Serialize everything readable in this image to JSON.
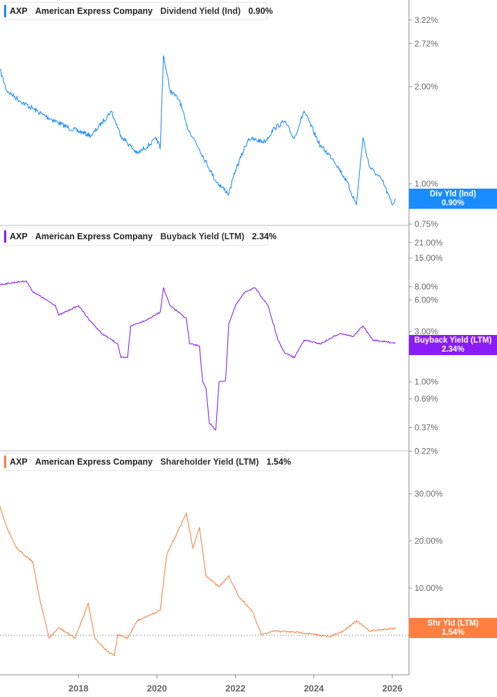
{
  "chart_data": [
    {
      "type": "line",
      "scale": "log",
      "ticker": "AXP",
      "company": "American Express Company",
      "metric": "Dividend Yield (Ind)",
      "current": "0.90%",
      "tag_label": "Div Yld (Ind)",
      "color": "#1a8cff",
      "y_ticks": [
        "3.22%",
        "2.72%",
        "2.00%",
        "1.00%",
        "0.88%",
        "0.75%"
      ],
      "ylim": [
        0.75,
        3.5
      ],
      "points": [
        [
          "2016-01",
          2.26
        ],
        [
          "2016-03",
          1.95
        ],
        [
          "2016-07",
          1.81
        ],
        [
          "2017-02",
          1.64
        ],
        [
          "2017-10",
          1.49
        ],
        [
          "2018-05",
          1.41
        ],
        [
          "2018-11",
          1.68
        ],
        [
          "2019-02",
          1.41
        ],
        [
          "2019-07",
          1.24
        ],
        [
          "2020-01",
          1.38
        ],
        [
          "2020-02",
          1.28
        ],
        [
          "2020-03",
          2.5
        ],
        [
          "2020-05",
          1.95
        ],
        [
          "2020-08",
          1.81
        ],
        [
          "2020-10",
          1.52
        ],
        [
          "2021-02",
          1.28
        ],
        [
          "2021-07",
          1.02
        ],
        [
          "2021-11",
          0.93
        ],
        [
          "2022-01",
          1.1
        ],
        [
          "2022-05",
          1.38
        ],
        [
          "2022-10",
          1.35
        ],
        [
          "2023-01",
          1.49
        ],
        [
          "2023-04",
          1.56
        ],
        [
          "2023-07",
          1.38
        ],
        [
          "2023-10",
          1.68
        ],
        [
          "2024-03",
          1.31
        ],
        [
          "2024-07",
          1.19
        ],
        [
          "2024-11",
          1.02
        ],
        [
          "2025-02",
          0.86
        ],
        [
          "2025-04",
          1.39
        ],
        [
          "2025-06",
          1.13
        ],
        [
          "2025-10",
          1.02
        ],
        [
          "2026-01",
          0.86
        ],
        [
          "2026-02",
          0.9
        ]
      ]
    },
    {
      "type": "line",
      "scale": "log",
      "ticker": "AXP",
      "company": "American Express Company",
      "metric": "Buyback Yield (LTM)",
      "current": "2.34%",
      "tag_label": "Buyback Yield (LTM)",
      "color": "#8a1cf7",
      "y_ticks": [
        "21.00%",
        "15.00%",
        "8.00%",
        "6.00%",
        "3.00%",
        "2.00%",
        "1.00%",
        "0.69%",
        "0.37%",
        "0.22%"
      ],
      "ylim": [
        0.22,
        25
      ],
      "points": [
        [
          "2016-01",
          8.4
        ],
        [
          "2016-09",
          9.1
        ],
        [
          "2016-11",
          7.2
        ],
        [
          "2017-06",
          5.3
        ],
        [
          "2017-07",
          4.3
        ],
        [
          "2018-01",
          5.3
        ],
        [
          "2018-04",
          4.0
        ],
        [
          "2018-08",
          2.9
        ],
        [
          "2019-01",
          2.3
        ],
        [
          "2019-02",
          1.7
        ],
        [
          "2019-04",
          1.7
        ],
        [
          "2019-05",
          3.4
        ],
        [
          "2019-10",
          3.9
        ],
        [
          "2020-02",
          4.6
        ],
        [
          "2020-03",
          7.8
        ],
        [
          "2020-05",
          5.3
        ],
        [
          "2020-10",
          4.0
        ],
        [
          "2020-11",
          2.3
        ],
        [
          "2021-02",
          2.2
        ],
        [
          "2021-03",
          1.0
        ],
        [
          "2021-04",
          0.87
        ],
        [
          "2021-05",
          0.41
        ],
        [
          "2021-07",
          0.35
        ],
        [
          "2021-08",
          1.0
        ],
        [
          "2021-10",
          1.03
        ],
        [
          "2021-11",
          3.6
        ],
        [
          "2022-01",
          5.3
        ],
        [
          "2022-04",
          7.2
        ],
        [
          "2022-07",
          7.8
        ],
        [
          "2022-11",
          5.3
        ],
        [
          "2023-02",
          2.5
        ],
        [
          "2023-04",
          1.9
        ],
        [
          "2023-07",
          1.7
        ],
        [
          "2023-10",
          2.5
        ],
        [
          "2024-03",
          2.3
        ],
        [
          "2024-09",
          2.9
        ],
        [
          "2025-01",
          2.7
        ],
        [
          "2025-04",
          3.4
        ],
        [
          "2025-07",
          2.5
        ],
        [
          "2026-02",
          2.34
        ]
      ]
    },
    {
      "type": "line",
      "scale": "linear",
      "ticker": "AXP",
      "company": "American Express Company",
      "metric": "Shareholder Yield (LTM)",
      "current": "1.54%",
      "tag_label": "Shr Yld (LTM)",
      "color": "#ff7f41",
      "y_ticks": [
        "30.00%",
        "20.00%",
        "10.00%",
        "0.00%"
      ],
      "ylim": [
        -7,
        33
      ],
      "points": [
        [
          "2016-01",
          27.4
        ],
        [
          "2016-03",
          23.0
        ],
        [
          "2016-06",
          18.5
        ],
        [
          "2016-11",
          15.6
        ],
        [
          "2017-01",
          8.2
        ],
        [
          "2017-04",
          -0.6
        ],
        [
          "2017-07",
          1.6
        ],
        [
          "2017-12",
          -0.6
        ],
        [
          "2018-04",
          6.8
        ],
        [
          "2018-06",
          -0.6
        ],
        [
          "2018-10",
          -3.5
        ],
        [
          "2018-12",
          -4.3
        ],
        [
          "2019-01",
          0.1
        ],
        [
          "2019-04",
          -0.6
        ],
        [
          "2019-07",
          3.1
        ],
        [
          "2020-02",
          5.3
        ],
        [
          "2020-04",
          17.1
        ],
        [
          "2020-07",
          21.5
        ],
        [
          "2020-10",
          25.9
        ],
        [
          "2020-12",
          18.5
        ],
        [
          "2021-02",
          22.9
        ],
        [
          "2021-04",
          12.6
        ],
        [
          "2021-08",
          10.3
        ],
        [
          "2021-11",
          12.6
        ],
        [
          "2022-02",
          8.2
        ],
        [
          "2022-06",
          5.3
        ],
        [
          "2022-09",
          0.1
        ],
        [
          "2023-01",
          0.9
        ],
        [
          "2023-09",
          0.6
        ],
        [
          "2024-03",
          0.0
        ],
        [
          "2024-06",
          -0.3
        ],
        [
          "2024-10",
          0.9
        ],
        [
          "2025-02",
          3.1
        ],
        [
          "2025-06",
          0.9
        ],
        [
          "2026-02",
          1.54
        ]
      ]
    }
  ],
  "x_ticks": [
    "2018",
    "2020",
    "2022",
    "2024",
    "2026"
  ]
}
